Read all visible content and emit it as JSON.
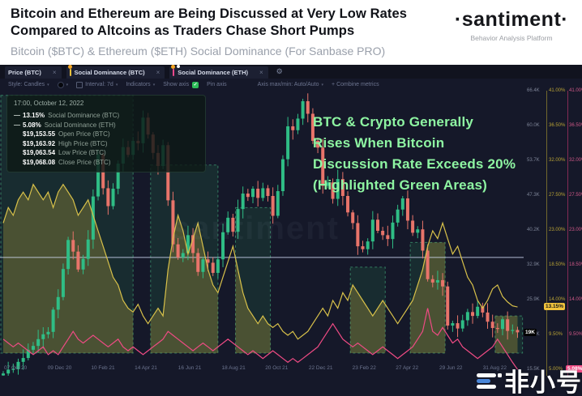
{
  "header": {
    "title": "Bitcoin and Ethereum are Being Discussed at Very Low Rates Compared to Altcoins as Traders Chase Short Pumps",
    "subtitle": "Bitcoin ($BTC) & Ethereum ($ETH) Social Dominance (For Sanbase PRO)",
    "brand": {
      "name": "·santiment·",
      "tagline": "Behavior Analysis Platform"
    }
  },
  "tabs": [
    {
      "label": "Price (BTC)",
      "bar_color": "",
      "dots": []
    },
    {
      "label": "Social Dominance (BTC)",
      "bar_color": "#f0c23c",
      "dots": [
        "#f5a623"
      ]
    },
    {
      "label": "Social Dominance (ETH)",
      "bar_color": "#f0488c",
      "dots": [
        "#f5a623",
        "#ffffff"
      ]
    }
  ],
  "toolbar": {
    "style_label": "Style: Candles",
    "interval_label": "Interval: 7d",
    "indicators_label": "Indicators",
    "show_axis_label": "Show axis",
    "check_glyph": "✓",
    "pin_axis_label": "Pin axis",
    "axis_maxmin_label": "Axis max/min: Auto/Auto",
    "plus": "+",
    "combine_label": "Combine metrics",
    "gear_glyph": "⚙",
    "close_glyph": "×",
    "caret_glyph": "▾"
  },
  "tooltip": {
    "timestamp": "17:00, October 12, 2022",
    "rows": [
      {
        "marker": "—",
        "value": "13.15%",
        "label": "Social Dominance (BTC)"
      },
      {
        "marker": "—",
        "value": "5.08%",
        "label": "Social Dominance (ETH)"
      },
      {
        "marker": "",
        "value": "$19,153.55",
        "label": "Open Price (BTC)"
      },
      {
        "marker": "",
        "value": "$19,163.92",
        "label": "High Price (BTC)"
      },
      {
        "marker": "",
        "value": "$19,063.54",
        "label": "Low Price (BTC)"
      },
      {
        "marker": "",
        "value": "$19,068.08",
        "label": "Close Price (BTC)"
      }
    ]
  },
  "annotation": {
    "lines": [
      "BTC & Crypto Generally",
      "Rises When Bitcoin",
      "Discussion Rate Exceeds 20%",
      "(Highlighted Green Areas)"
    ],
    "color": "#8ef5a2"
  },
  "watermarks": {
    "center": "santiment",
    "bottom_right": "非小号"
  },
  "axes": {
    "price_ticks": [
      "66.4K",
      "60.0K",
      "53.7K",
      "47.3K",
      "40.2K",
      "32.9K",
      "25.9K",
      "19.4K",
      "15.5K"
    ],
    "dominance_ticks": [
      "41.00%",
      "36.50%",
      "32.00%",
      "27.50%",
      "23.00%",
      "18.50%",
      "14.00%",
      "9.50%",
      "5.00%"
    ],
    "x_ticks": [
      "07 Oct 20",
      "09 Dec 20",
      "10 Feb 21",
      "14 Apr 21",
      "16 Jun 21",
      "18 Aug 21",
      "20 Oct 21",
      "22 Dec 21",
      "23 Feb 22",
      "27 Apr 22",
      "29 Jun 22",
      "31 Aug 22"
    ]
  },
  "badges": {
    "price": "19K",
    "dom_btc": "13.15%",
    "dom_eth": "5.08%"
  },
  "colors": {
    "candle_up": "#2fbd85",
    "candle_down": "#e8746a",
    "dom_btc_line": "#d8c14a",
    "dom_eth_line": "#ef4b84",
    "box_fill": "rgba(47,158,95,0.15)",
    "box_stroke": "rgba(74,196,138,0.55)",
    "area_fill": "rgba(181,163,60,0.32)",
    "level_line": "rgba(205,215,240,0.85)",
    "badge_yellow_bg": "#f0c23c",
    "badge_pink_bg": "#ef4b84",
    "badge_black_bg": "#000000"
  },
  "chart_data": {
    "type": "candlestick+line",
    "title": "Bitcoin ($BTC) & Ethereum ($ETH) Social Dominance",
    "interval": "7d",
    "x_range": [
      "07 Oct 20",
      "12 Oct 22"
    ],
    "price_axis": {
      "top_k": 68.9,
      "step_k": 7.2,
      "unit": "USD (K)"
    },
    "dominance_axis": {
      "top_pct": 41.0,
      "step_pct": 4.5,
      "bottom_pct": 5.0,
      "unit": "%"
    },
    "level_line_price_k": 34.6,
    "highlight_bottom_pct": 7.2,
    "highlight_boxes": [
      {
        "from_week": 0,
        "to_week": 26,
        "top_pct": 40.5
      },
      {
        "from_week": 30,
        "to_week": 43,
        "top_pct": 31.5
      },
      {
        "from_week": 47,
        "to_week": 53.5,
        "top_pct": 26.0
      },
      {
        "from_week": 70,
        "to_week": 76.5,
        "top_pct": 18.3
      },
      {
        "from_week": 82,
        "to_week": 88.5,
        "top_pct": 21.5
      },
      {
        "from_week": 99,
        "to_week": 104,
        "top_pct": 12.0
      }
    ],
    "series": [
      {
        "name": "Price (BTC)",
        "type": "candlestick",
        "unit": "USD thousands",
        "weekly_close_usd_k": [
          10.6,
          11.4,
          11.5,
          13.0,
          13.8,
          15.5,
          16.3,
          17.7,
          18.7,
          19.2,
          23.8,
          26.4,
          32.2,
          38.2,
          35.8,
          32.1,
          34.3,
          38.3,
          47.2,
          55.9,
          48.9,
          45.2,
          48.8,
          54.0,
          57.4,
          55.8,
          58.7,
          58.2,
          63.5,
          60.0,
          56.2,
          53.5,
          57.8,
          46.4,
          37.3,
          34.6,
          35.5,
          39.2,
          35.5,
          31.6,
          34.2,
          33.5,
          31.4,
          34.2,
          39.8,
          42.8,
          39.9,
          44.6,
          47.8,
          47.1,
          48.8,
          46.9,
          48.9,
          47.3,
          43.2,
          48.3,
          54.9,
          61.7,
          60.9,
          63.3,
          66.9,
          64.3,
          58.7,
          57.3,
          49.4,
          50.1,
          46.7,
          50.8,
          47.3,
          43.9,
          41.7,
          36.9,
          36.3,
          37.9,
          42.4,
          40.1,
          39.2,
          38.4,
          41.8,
          44.5,
          46.8,
          42.2,
          39.7,
          40.4,
          36.0,
          30.1,
          29.4,
          29.9,
          28.6,
          20.5,
          21.0,
          19.9,
          21.6,
          23.3,
          22.5,
          24.4,
          23.2,
          21.3,
          20.0,
          19.8,
          21.8,
          19.4,
          19.6,
          19.1
        ],
        "open_first_usd_k": 10.2,
        "current": {
          "open": "$19,153.55",
          "high": "$19,163.92",
          "low": "$19,063.54",
          "close": "$19,068.08"
        }
      },
      {
        "name": "Social Dominance (BTC)",
        "type": "line",
        "unit": "%",
        "current_pct": 13.15,
        "values_pct": [
          24,
          26,
          25,
          27,
          28,
          27,
          29,
          28,
          27,
          28,
          26,
          28,
          29,
          28,
          27,
          25,
          26,
          27,
          25,
          23,
          21,
          19,
          17,
          16,
          14,
          13,
          12.5,
          13.5,
          12,
          11,
          12,
          13,
          12,
          18,
          22,
          25,
          23,
          20,
          22,
          24,
          21,
          18,
          16,
          15,
          17,
          19,
          21,
          18,
          15,
          13,
          12,
          11,
          12,
          11,
          10.5,
          11,
          10,
          9.5,
          10,
          9,
          9.5,
          10,
          11,
          12,
          13,
          12,
          14,
          13,
          15,
          14,
          16,
          15,
          14,
          13,
          12,
          13,
          14,
          13,
          12,
          11,
          12,
          13,
          14,
          16,
          18,
          21,
          23,
          22,
          24,
          22,
          20,
          21,
          19,
          17,
          16,
          14,
          13,
          14,
          15.5,
          16,
          14.5,
          13.8,
          13.3,
          13.15
        ]
      },
      {
        "name": "Social Dominance (ETH)",
        "type": "line",
        "unit": "%",
        "current_pct": 5.08,
        "values_pct": [
          9,
          8.5,
          8,
          8.5,
          8,
          7.5,
          7,
          7.5,
          8,
          7,
          7.5,
          7,
          8,
          9,
          10,
          9,
          8.5,
          9,
          9.5,
          9,
          8.5,
          8,
          8.5,
          9,
          8,
          7.5,
          8,
          7.5,
          7,
          7.5,
          8,
          8.5,
          9,
          10,
          9.5,
          9,
          8.5,
          8,
          7.5,
          8,
          8.5,
          8,
          7.5,
          8,
          8.5,
          9,
          8.5,
          8,
          7.5,
          7,
          7.5,
          7,
          6.5,
          7,
          7.5,
          7,
          6.5,
          6,
          6.5,
          6,
          6.5,
          7,
          7.5,
          8,
          9,
          10,
          11,
          10,
          9,
          8.5,
          8,
          8.5,
          8,
          7.5,
          7,
          7.5,
          8,
          7.5,
          7,
          6.5,
          7,
          7.5,
          8,
          9,
          10,
          13,
          10,
          9.5,
          10.5,
          9.5,
          8.5,
          9,
          8,
          7.5,
          7,
          6.5,
          7,
          7.5,
          8,
          9,
          8,
          7,
          6,
          5.08
        ]
      }
    ]
  }
}
